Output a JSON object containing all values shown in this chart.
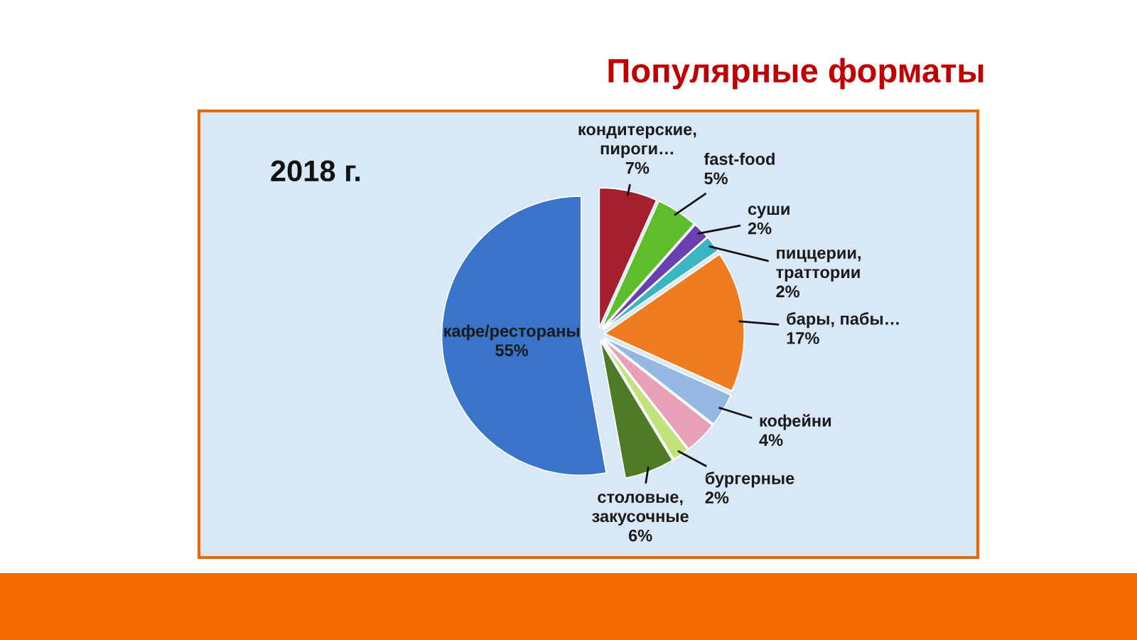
{
  "chart_data": {
    "type": "pie",
    "title": "Популярные форматы",
    "subtitle": "2018 г.",
    "categories": [
      "кондитерские,\nпироги…",
      "fast-food",
      "суши",
      "пиццерии,\nтраттории",
      "бары, пабы…",
      "кофейни",
      null,
      "бургерные",
      "столовые,\nзакусочные",
      "кафе/рестораны"
    ],
    "values": [
      7,
      5,
      2,
      2,
      17,
      4,
      4,
      2,
      6,
      55
    ],
    "value_labels": [
      "7%",
      "5%",
      "2%",
      "2%",
      "17%",
      "4%",
      null,
      "2%",
      "6%",
      "55%"
    ],
    "colors": [
      "#a61f2e",
      "#5ebd2a",
      "#6a3fb0",
      "#3ab5c4",
      "#ef7d1f",
      "#95b8e3",
      "#e8a0b8",
      "#c2e27a",
      "#4f7a28",
      "#3a74c9"
    ]
  }
}
